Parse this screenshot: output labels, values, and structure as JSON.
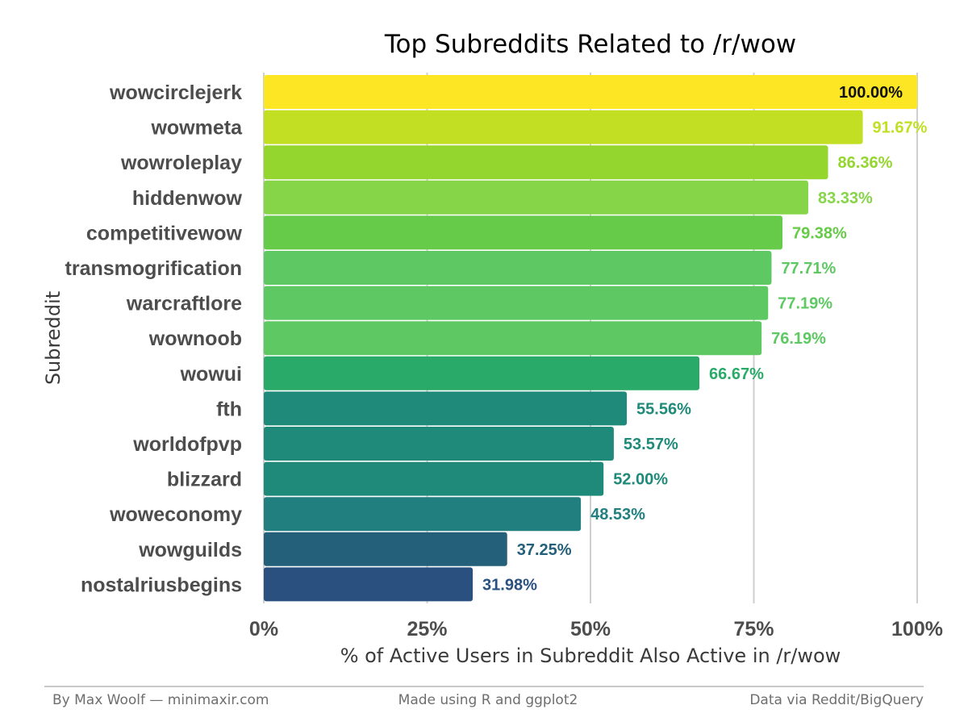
{
  "chart_data": {
    "type": "bar",
    "orientation": "horizontal",
    "title": "Top Subreddits Related to /r/wow",
    "xlabel": "% of Active Users in Subreddit Also Active in /r/wow",
    "ylabel": "Subreddit",
    "xlim": [
      0,
      100
    ],
    "xticks": [
      "0%",
      "25%",
      "50%",
      "75%",
      "100%"
    ],
    "grid": "vertical",
    "categories": [
      "wowcirclejerk",
      "wowmeta",
      "wowroleplay",
      "hiddenwow",
      "competitivewow",
      "transmogrification",
      "warcraftlore",
      "wownoob",
      "wowui",
      "fth",
      "worldofpvp",
      "blizzard",
      "woweconomy",
      "wowguilds",
      "nostalriusbegins"
    ],
    "values": [
      100.0,
      91.67,
      86.36,
      83.33,
      79.38,
      77.71,
      77.19,
      76.19,
      66.67,
      55.56,
      53.57,
      52.0,
      48.53,
      37.25,
      31.98
    ],
    "labels": [
      "100.00%",
      "91.67%",
      "86.36%",
      "83.33%",
      "79.38%",
      "77.71%",
      "77.19%",
      "76.19%",
      "66.67%",
      "55.56%",
      "53.57%",
      "52.00%",
      "48.53%",
      "37.25%",
      "31.98%"
    ],
    "colors": [
      "#fde725",
      "#c2df23",
      "#95d62e",
      "#86d549",
      "#65cb48",
      "#5ec962",
      "#5ec962",
      "#5ec962",
      "#2aaa68",
      "#1f8a7a",
      "#1f8a7a",
      "#1f8a7a",
      "#21807f",
      "#24607a",
      "#2a5080"
    ],
    "label_colors": [
      "#111111",
      "#c2df23",
      "#95d62e",
      "#86d549",
      "#65cb48",
      "#5ec962",
      "#5ec962",
      "#5ec962",
      "#2aaa68",
      "#1f8a7a",
      "#1f8a7a",
      "#1f8a7a",
      "#21807f",
      "#24607a",
      "#2a5080"
    ]
  },
  "footer": {
    "left": "By Max Woolf — minimaxir.com",
    "center": "Made using R and ggplot2",
    "right": "Data via Reddit/BigQuery"
  }
}
